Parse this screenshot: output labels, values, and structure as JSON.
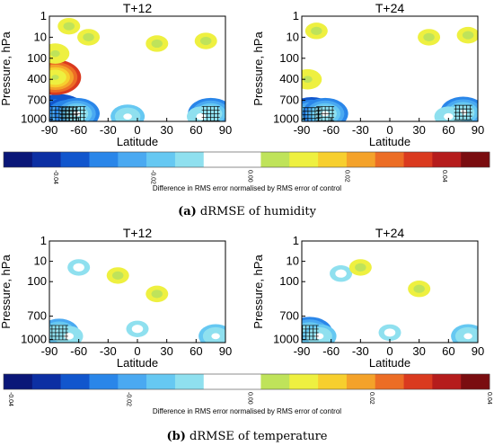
{
  "figure_type": "contour-maps",
  "colors": {
    "scale": [
      "#0a1778",
      "#0c2fa3",
      "#1156cd",
      "#2a86e9",
      "#4aa9f1",
      "#66c8f2",
      "#8fe0ef",
      "#ffffff",
      "#ffffff",
      "#bfe35a",
      "#eef040",
      "#f7cf2e",
      "#f4a22a",
      "#ec6d25",
      "#da3a1f",
      "#b51c1c",
      "#7a0d10"
    ],
    "hatch": "#000000"
  },
  "chart_data": [
    {
      "type": "heatmap",
      "panel": "a",
      "title": "T+12",
      "xlabel": "Latitude",
      "ylabel": "Pressure, hPa",
      "xticks": [
        "-90",
        "-60",
        "-30",
        "0",
        "30",
        "60",
        "90"
      ],
      "yticks": [
        "1",
        "10",
        "100",
        "400",
        "700",
        "1000"
      ],
      "xlim": [
        -90,
        90
      ],
      "y_scale": "log",
      "features": [
        {
          "lat": -80,
          "p": 900,
          "value": -0.04
        },
        {
          "lat": -70,
          "p": 920,
          "value": -0.035
        },
        {
          "lat": -62,
          "p": 900,
          "value": -0.03
        },
        {
          "lat": 75,
          "p": 900,
          "value": -0.03
        },
        {
          "lat": 65,
          "p": 950,
          "value": -0.015
        },
        {
          "lat": -10,
          "p": 950,
          "value": -0.02
        },
        {
          "lat": -84,
          "p": 350,
          "value": 0.035
        },
        {
          "lat": -84,
          "p": 60,
          "value": 0.015
        },
        {
          "lat": -70,
          "p": 3,
          "value": 0.01
        },
        {
          "lat": -50,
          "p": 10,
          "value": 0.01
        },
        {
          "lat": 20,
          "p": 20,
          "value": 0.01
        },
        {
          "lat": 70,
          "p": 15,
          "value": 0.01
        }
      ]
    },
    {
      "type": "heatmap",
      "panel": "a",
      "title": "T+24",
      "xlabel": "Latitude",
      "ylabel": "Pressure, hPa",
      "xticks": [
        "-90",
        "-60",
        "-30",
        "0",
        "30",
        "60",
        "90"
      ],
      "yticks": [
        "1",
        "10",
        "100",
        "400",
        "700",
        "1000"
      ],
      "xlim": [
        -90,
        90
      ],
      "y_scale": "log",
      "features": [
        {
          "lat": -80,
          "p": 920,
          "value": -0.035
        },
        {
          "lat": -66,
          "p": 900,
          "value": -0.03
        },
        {
          "lat": 75,
          "p": 880,
          "value": -0.03
        },
        {
          "lat": 60,
          "p": 950,
          "value": -0.015
        },
        {
          "lat": -84,
          "p": 400,
          "value": 0.015
        },
        {
          "lat": -75,
          "p": 5,
          "value": 0.01
        },
        {
          "lat": 40,
          "p": 10,
          "value": 0.01
        },
        {
          "lat": 80,
          "p": 8,
          "value": 0.01
        }
      ]
    },
    {
      "type": "heatmap",
      "panel": "b",
      "title": "T+12",
      "xlabel": "Latitude",
      "ylabel": "Pressure, hPa",
      "xticks": [
        "-90",
        "-60",
        "-30",
        "0",
        "30",
        "60",
        "90"
      ],
      "yticks": [
        "1",
        "10",
        "100",
        "700",
        "1000"
      ],
      "xlim": [
        -90,
        90
      ],
      "y_scale": "log",
      "features": [
        {
          "lat": -80,
          "p": 900,
          "value": -0.025
        },
        {
          "lat": -70,
          "p": 950,
          "value": -0.015
        },
        {
          "lat": 80,
          "p": 950,
          "value": -0.02
        },
        {
          "lat": 0,
          "p": 850,
          "value": -0.01
        },
        {
          "lat": -60,
          "p": 20,
          "value": -0.01
        },
        {
          "lat": 20,
          "p": 200,
          "value": 0.01
        },
        {
          "lat": -20,
          "p": 50,
          "value": 0.01
        }
      ]
    },
    {
      "type": "heatmap",
      "panel": "b",
      "title": "T+24",
      "xlabel": "Latitude",
      "ylabel": "Pressure, hPa",
      "xticks": [
        "-90",
        "-60",
        "-30",
        "0",
        "30",
        "60",
        "90"
      ],
      "yticks": [
        "1",
        "10",
        "100",
        "700",
        "1000"
      ],
      "xlim": [
        -90,
        90
      ],
      "y_scale": "log",
      "features": [
        {
          "lat": -82,
          "p": 900,
          "value": -0.03
        },
        {
          "lat": -72,
          "p": 950,
          "value": -0.02
        },
        {
          "lat": 80,
          "p": 950,
          "value": -0.02
        },
        {
          "lat": 0,
          "p": 900,
          "value": -0.01
        },
        {
          "lat": -50,
          "p": 40,
          "value": -0.01
        },
        {
          "lat": 30,
          "p": 150,
          "value": 0.01
        },
        {
          "lat": -30,
          "p": 20,
          "value": 0.01
        }
      ]
    }
  ],
  "colorbars": [
    {
      "panel": "a",
      "ticks": [
        "-0.04",
        "-0.02",
        "0.00",
        "0.02",
        "0.04"
      ],
      "tick_values": [
        -0.04,
        -0.02,
        0.0,
        0.02,
        0.04
      ],
      "range": [
        -0.05,
        0.05
      ],
      "label": "Difference in RMS error normalised by RMS error of control"
    },
    {
      "panel": "b",
      "ticks": [
        "-0.04",
        "-0.02",
        "0.00",
        "0.02",
        "0.04"
      ],
      "tick_values": [
        -0.04,
        -0.02,
        0.0,
        0.02,
        0.04
      ],
      "range": [
        -0.04,
        0.04
      ],
      "label": "Difference in RMS error normalised by RMS error of control"
    }
  ],
  "captions": {
    "a_tag": "(a)",
    "a_text": " dRMSE of humidity",
    "b_tag": "(b)",
    "b_text": " dRMSE of temperature"
  }
}
